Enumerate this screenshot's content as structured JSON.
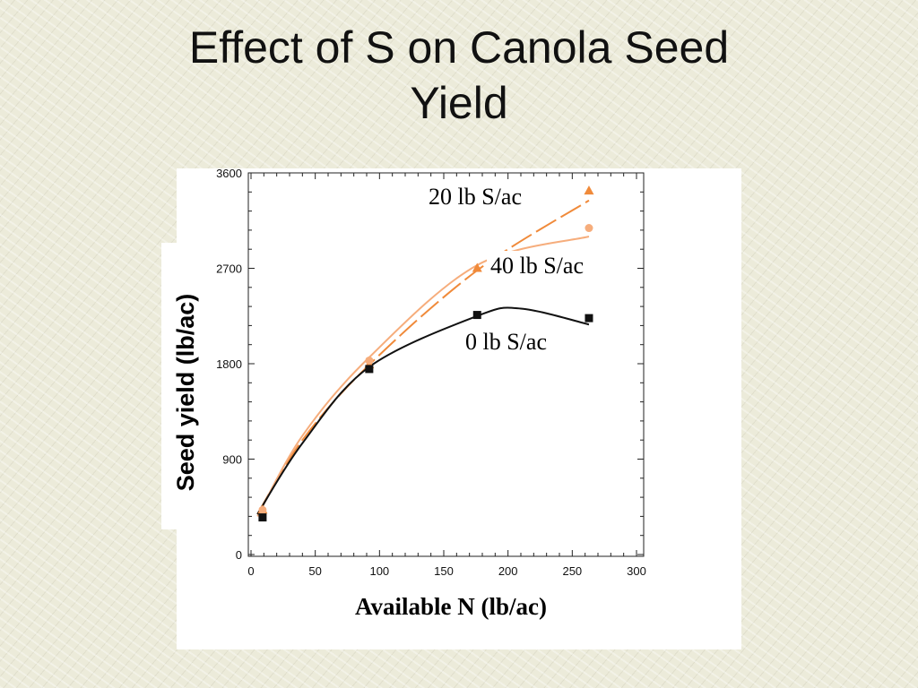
{
  "slide": {
    "title_line1": "Effect of S on Canola Seed",
    "title_line2": "Yield"
  },
  "chart_data": {
    "type": "scatter",
    "xlabel": "Available N (lb/ac)",
    "ylabel": "Seed yield (lb/ac)",
    "xlim": [
      0,
      300
    ],
    "ylim": [
      0,
      3600
    ],
    "xticks": [
      "0",
      "50",
      "100",
      "150",
      "200",
      "250",
      "300"
    ],
    "yticks": [
      "0",
      "900",
      "1800",
      "2700",
      "3600"
    ],
    "grid": false,
    "series": [
      {
        "name": "20 lb S/ac",
        "color": "#f08a3a",
        "marker": "triangle",
        "points": [
          [
            9,
            420
          ],
          [
            92,
            1790
          ],
          [
            176,
            2700
          ],
          [
            263,
            3430
          ]
        ],
        "curve": [
          [
            5,
            380
          ],
          [
            40,
            1080
          ],
          [
            92,
            1790
          ],
          [
            176,
            2680
          ],
          [
            263,
            3340
          ]
        ],
        "curve_style": "dashed"
      },
      {
        "name": "40 lb S/ac",
        "color": "#f6ad7c",
        "marker": "circle",
        "points": [
          [
            9,
            420
          ],
          [
            92,
            1830
          ],
          [
            263,
            3080
          ]
        ],
        "curve": [
          [
            5,
            360
          ],
          [
            40,
            1120
          ],
          [
            92,
            1860
          ],
          [
            176,
            2730
          ],
          [
            263,
            3000
          ]
        ],
        "curve_style": "solid"
      },
      {
        "name": "0 lb S/ac",
        "color": "#111111",
        "marker": "square",
        "points": [
          [
            9,
            350
          ],
          [
            92,
            1750
          ],
          [
            176,
            2260
          ],
          [
            263,
            2230
          ]
        ],
        "curve": [
          [
            5,
            380
          ],
          [
            40,
            1050
          ],
          [
            92,
            1770
          ],
          [
            176,
            2250
          ],
          [
            210,
            2320
          ],
          [
            263,
            2170
          ]
        ],
        "curve_style": "solid"
      }
    ]
  }
}
